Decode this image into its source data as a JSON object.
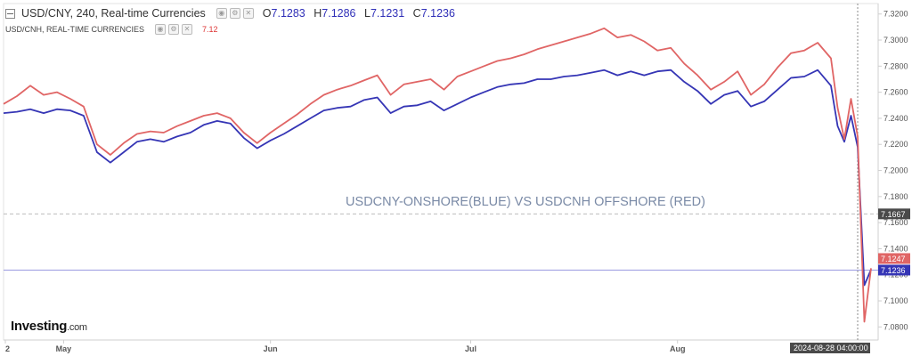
{
  "header": {
    "main_title": "USD/CNY, 240, Real-time Currencies",
    "open_label": "O",
    "open": "7.1283",
    "high_label": "H",
    "high": "7.1286",
    "low_label": "L",
    "low": "7.1231",
    "close_label": "C",
    "close": "7.1236",
    "secondary_title": "USD/CNH, REAL-TIME CURRENCIES",
    "secondary_value": "7.12"
  },
  "brand": {
    "name": "Investing",
    "suffix": ".com"
  },
  "colors": {
    "onshore": "#3535b5",
    "offshore": "#e06565",
    "price_line": "#9a9ae0",
    "ref_line": "#bdbdbd",
    "crosshair": "#8a8a8a"
  },
  "chart_data": {
    "type": "line",
    "annotation": "USDCNY-ONSHORE(BLUE) VS USDCNH OFFSHORE (RED)",
    "x_tick_labels": [
      {
        "label": "2",
        "date": "2024-04-22"
      },
      {
        "label": "May",
        "date": "2024-05-01"
      },
      {
        "label": "Jun",
        "date": "2024-06-01"
      },
      {
        "label": "Jul",
        "date": "2024-07-01"
      },
      {
        "label": "Aug",
        "date": "2024-08-01"
      }
    ],
    "crosshair_date": "2024-08-28 04:00:00",
    "y_ticks": [
      "7.3200",
      "7.3000",
      "7.2800",
      "7.2600",
      "7.2400",
      "7.2200",
      "7.2000",
      "7.1800",
      "7.1600",
      "7.1400",
      "7.1200",
      "7.1000",
      "7.0800"
    ],
    "ylim": [
      7.07,
      7.328
    ],
    "xlim": [
      "2024-04-22",
      "2024-08-30"
    ],
    "reference_label": "7.1667",
    "reference_value": 7.1667,
    "last_values": {
      "offshore": "7.1247",
      "onshore": "7.1236"
    },
    "series": [
      {
        "key": "onshore",
        "points": [
          [
            "2024-04-22",
            7.244
          ],
          [
            "2024-04-24",
            7.245
          ],
          [
            "2024-04-26",
            7.247
          ],
          [
            "2024-04-28",
            7.244
          ],
          [
            "2024-04-30",
            7.247
          ],
          [
            "2024-05-02",
            7.246
          ],
          [
            "2024-05-04",
            7.242
          ],
          [
            "2024-05-06",
            7.214
          ],
          [
            "2024-05-08",
            7.206
          ],
          [
            "2024-05-10",
            7.214
          ],
          [
            "2024-05-12",
            7.222
          ],
          [
            "2024-05-14",
            7.224
          ],
          [
            "2024-05-16",
            7.222
          ],
          [
            "2024-05-18",
            7.226
          ],
          [
            "2024-05-20",
            7.229
          ],
          [
            "2024-05-22",
            7.235
          ],
          [
            "2024-05-24",
            7.238
          ],
          [
            "2024-05-26",
            7.236
          ],
          [
            "2024-05-28",
            7.225
          ],
          [
            "2024-05-30",
            7.217
          ],
          [
            "2024-06-01",
            7.223
          ],
          [
            "2024-06-03",
            7.228
          ],
          [
            "2024-06-05",
            7.234
          ],
          [
            "2024-06-07",
            7.24
          ],
          [
            "2024-06-09",
            7.246
          ],
          [
            "2024-06-11",
            7.248
          ],
          [
            "2024-06-13",
            7.249
          ],
          [
            "2024-06-15",
            7.254
          ],
          [
            "2024-06-17",
            7.256
          ],
          [
            "2024-06-19",
            7.244
          ],
          [
            "2024-06-21",
            7.249
          ],
          [
            "2024-06-23",
            7.25
          ],
          [
            "2024-06-25",
            7.253
          ],
          [
            "2024-06-27",
            7.246
          ],
          [
            "2024-06-29",
            7.251
          ],
          [
            "2024-07-01",
            7.256
          ],
          [
            "2024-07-03",
            7.26
          ],
          [
            "2024-07-05",
            7.264
          ],
          [
            "2024-07-07",
            7.266
          ],
          [
            "2024-07-09",
            7.267
          ],
          [
            "2024-07-11",
            7.27
          ],
          [
            "2024-07-13",
            7.27
          ],
          [
            "2024-07-15",
            7.272
          ],
          [
            "2024-07-17",
            7.273
          ],
          [
            "2024-07-19",
            7.275
          ],
          [
            "2024-07-21",
            7.277
          ],
          [
            "2024-07-23",
            7.273
          ],
          [
            "2024-07-25",
            7.276
          ],
          [
            "2024-07-27",
            7.273
          ],
          [
            "2024-07-29",
            7.276
          ],
          [
            "2024-07-31",
            7.277
          ],
          [
            "2024-08-02",
            7.268
          ],
          [
            "2024-08-04",
            7.261
          ],
          [
            "2024-08-06",
            7.251
          ],
          [
            "2024-08-08",
            7.258
          ],
          [
            "2024-08-10",
            7.261
          ],
          [
            "2024-08-12",
            7.249
          ],
          [
            "2024-08-14",
            7.253
          ],
          [
            "2024-08-16",
            7.262
          ],
          [
            "2024-08-18",
            7.271
          ],
          [
            "2024-08-20",
            7.272
          ],
          [
            "2024-08-22",
            7.277
          ],
          [
            "2024-08-24",
            7.265
          ],
          [
            "2024-08-25",
            7.234
          ],
          [
            "2024-08-26",
            7.222
          ],
          [
            "2024-08-27",
            7.242
          ],
          [
            "2024-08-28",
            7.218
          ],
          [
            "2024-08-29",
            7.112
          ],
          [
            "2024-08-30",
            7.124
          ]
        ]
      },
      {
        "key": "offshore",
        "points": [
          [
            "2024-04-22",
            7.251
          ],
          [
            "2024-04-24",
            7.257
          ],
          [
            "2024-04-26",
            7.265
          ],
          [
            "2024-04-28",
            7.258
          ],
          [
            "2024-04-30",
            7.26
          ],
          [
            "2024-05-02",
            7.255
          ],
          [
            "2024-05-04",
            7.249
          ],
          [
            "2024-05-06",
            7.22
          ],
          [
            "2024-05-08",
            7.212
          ],
          [
            "2024-05-10",
            7.221
          ],
          [
            "2024-05-12",
            7.228
          ],
          [
            "2024-05-14",
            7.23
          ],
          [
            "2024-05-16",
            7.229
          ],
          [
            "2024-05-18",
            7.234
          ],
          [
            "2024-05-20",
            7.238
          ],
          [
            "2024-05-22",
            7.242
          ],
          [
            "2024-05-24",
            7.244
          ],
          [
            "2024-05-26",
            7.24
          ],
          [
            "2024-05-28",
            7.229
          ],
          [
            "2024-05-30",
            7.221
          ],
          [
            "2024-06-01",
            7.229
          ],
          [
            "2024-06-03",
            7.236
          ],
          [
            "2024-06-05",
            7.243
          ],
          [
            "2024-06-07",
            7.251
          ],
          [
            "2024-06-09",
            7.258
          ],
          [
            "2024-06-11",
            7.262
          ],
          [
            "2024-06-13",
            7.265
          ],
          [
            "2024-06-15",
            7.269
          ],
          [
            "2024-06-17",
            7.273
          ],
          [
            "2024-06-19",
            7.258
          ],
          [
            "2024-06-21",
            7.266
          ],
          [
            "2024-06-23",
            7.268
          ],
          [
            "2024-06-25",
            7.27
          ],
          [
            "2024-06-27",
            7.262
          ],
          [
            "2024-06-29",
            7.272
          ],
          [
            "2024-07-01",
            7.276
          ],
          [
            "2024-07-03",
            7.28
          ],
          [
            "2024-07-05",
            7.284
          ],
          [
            "2024-07-07",
            7.286
          ],
          [
            "2024-07-09",
            7.289
          ],
          [
            "2024-07-11",
            7.293
          ],
          [
            "2024-07-13",
            7.296
          ],
          [
            "2024-07-15",
            7.299
          ],
          [
            "2024-07-17",
            7.302
          ],
          [
            "2024-07-19",
            7.305
          ],
          [
            "2024-07-21",
            7.309
          ],
          [
            "2024-07-23",
            7.302
          ],
          [
            "2024-07-25",
            7.304
          ],
          [
            "2024-07-27",
            7.299
          ],
          [
            "2024-07-29",
            7.292
          ],
          [
            "2024-07-31",
            7.294
          ],
          [
            "2024-08-02",
            7.282
          ],
          [
            "2024-08-04",
            7.273
          ],
          [
            "2024-08-06",
            7.262
          ],
          [
            "2024-08-08",
            7.268
          ],
          [
            "2024-08-10",
            7.276
          ],
          [
            "2024-08-12",
            7.258
          ],
          [
            "2024-08-14",
            7.266
          ],
          [
            "2024-08-16",
            7.279
          ],
          [
            "2024-08-18",
            7.29
          ],
          [
            "2024-08-20",
            7.292
          ],
          [
            "2024-08-22",
            7.298
          ],
          [
            "2024-08-24",
            7.286
          ],
          [
            "2024-08-25",
            7.248
          ],
          [
            "2024-08-26",
            7.224
          ],
          [
            "2024-08-27",
            7.255
          ],
          [
            "2024-08-28",
            7.226
          ],
          [
            "2024-08-29",
            7.084
          ],
          [
            "2024-08-30",
            7.125
          ]
        ]
      }
    ]
  }
}
